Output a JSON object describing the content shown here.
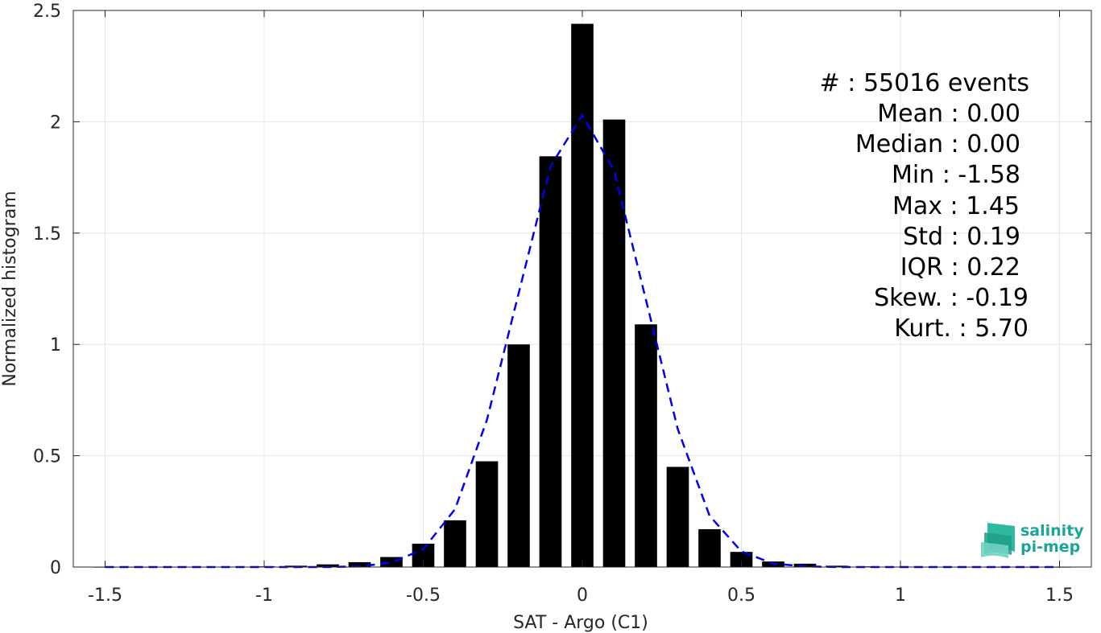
{
  "chart_data": {
    "type": "bar",
    "xlabel": "SAT - Argo (C1)",
    "ylabel": "Normalized histogram",
    "xlim": [
      -1.6,
      1.6
    ],
    "ylim": [
      0,
      2.5
    ],
    "xticks": [
      -1.5,
      -1,
      -0.5,
      0,
      0.5,
      1,
      1.5
    ],
    "xtick_labels": [
      "-1.5",
      "-1",
      "-0.5",
      "0",
      "0.5",
      "1",
      "1.5"
    ],
    "yticks": [
      0,
      0.5,
      1,
      1.5,
      2,
      2.5
    ],
    "ytick_labels": [
      "0",
      "0.5",
      "1",
      "1.5",
      "2",
      "2.5"
    ],
    "grid": true,
    "bar_width": 0.07,
    "x": [
      -1.5,
      -1.4,
      -1.3,
      -1.2,
      -1.1,
      -1.0,
      -0.9,
      -0.8,
      -0.7,
      -0.6,
      -0.5,
      -0.4,
      -0.3,
      -0.2,
      -0.1,
      0.0,
      0.1,
      0.2,
      0.3,
      0.4,
      0.5,
      0.6,
      0.7,
      0.8,
      0.9,
      1.0,
      1.1,
      1.2,
      1.3,
      1.4,
      1.5
    ],
    "series": [
      {
        "type": "bar",
        "color": "#000000",
        "values": [
          0.0005,
          0.0005,
          0.001,
          0.001,
          0.002,
          0.003,
          0.006,
          0.012,
          0.022,
          0.045,
          0.105,
          0.21,
          0.475,
          1.0,
          1.845,
          2.44,
          2.01,
          1.09,
          0.45,
          0.17,
          0.068,
          0.025,
          0.015,
          0.006,
          0.003,
          0.002,
          0.001,
          0.001,
          0.0005,
          0.0005,
          0.0005
        ]
      },
      {
        "type": "line",
        "style": "dashed",
        "color": "#0000ee",
        "values": [
          0.0,
          0.0,
          0.0,
          0.0,
          0.0,
          0.0,
          0.0,
          0.0,
          0.003,
          0.02,
          0.08,
          0.26,
          0.66,
          1.23,
          1.8,
          2.03,
          1.78,
          1.2,
          0.62,
          0.23,
          0.07,
          0.015,
          0.003,
          0.0,
          0.0,
          0.0,
          0.0,
          0.0,
          0.0,
          0.0,
          0.0
        ]
      }
    ],
    "annotations": [
      "#  : 55016 events",
      "Mean : 0.00",
      "Median : 0.00",
      "Min : -1.58",
      "Max : 1.45",
      "Std : 0.19",
      "IQR : 0.22",
      "Skew. : -0.19",
      "Kurt. : 5.70"
    ]
  },
  "logo": {
    "line1": "salinity",
    "line2": "pi-mep",
    "icon": "salinity-wave-icon",
    "color": "#1aa596"
  }
}
